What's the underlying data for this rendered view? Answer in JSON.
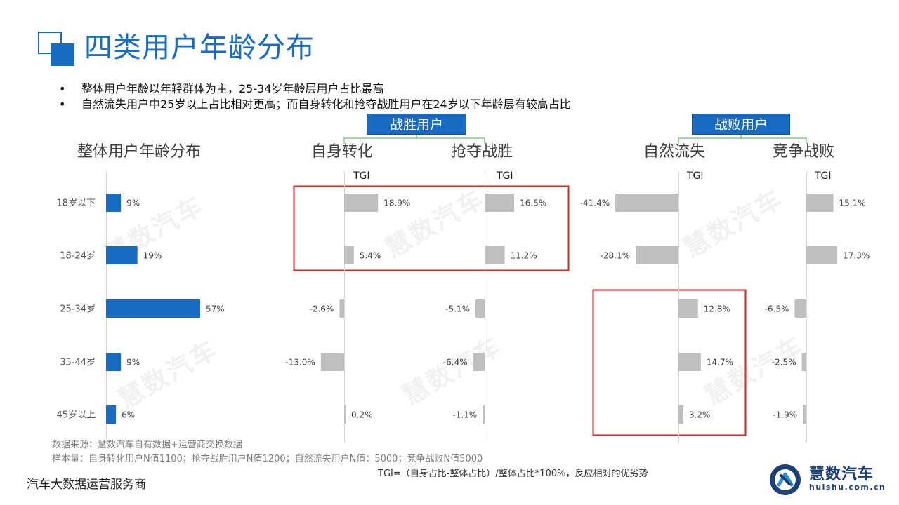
{
  "header": {
    "title": "四类用户年龄分布",
    "bullets": [
      "整体用户年龄以年轻群体为主，25-34岁年龄层用户占比最高",
      "自然流失用户中25岁以上占比相对更高；而自身转化和抢夺战胜用户在24岁以下年龄层有较高占比"
    ]
  },
  "groups": {
    "win": "战胜用户",
    "lose": "战败用户"
  },
  "chart_titles": {
    "overall": "整体用户年龄分布",
    "self": "自身转化",
    "grab": "抢夺战胜",
    "natural": "自然流失",
    "compete": "竞争战败"
  },
  "chart_data": [
    {
      "type": "bar",
      "orientation": "horizontal",
      "title": "整体用户年龄分布",
      "categories": [
        "18岁以下",
        "18-24岁",
        "25-34岁",
        "35-44岁",
        "45岁以上"
      ],
      "values": [
        9,
        19,
        57,
        9,
        6
      ],
      "labels": [
        "9%",
        "19%",
        "57%",
        "9%",
        "6%"
      ],
      "color": "#1a6bc4"
    },
    {
      "type": "bar",
      "orientation": "horizontal",
      "title": "自身转化",
      "axis_label": "TGI",
      "categories": [
        "18岁以下",
        "18-24岁",
        "25-34岁",
        "35-44岁",
        "45岁以上"
      ],
      "values": [
        18.9,
        5.4,
        -2.6,
        -13.0,
        0.2
      ],
      "labels": [
        "18.9%",
        "5.4%",
        "-2.6%",
        "-13.0%",
        "0.2%"
      ],
      "color": "#bfbfbf"
    },
    {
      "type": "bar",
      "orientation": "horizontal",
      "title": "抢夺战胜",
      "axis_label": "TGI",
      "categories": [
        "18岁以下",
        "18-24岁",
        "25-34岁",
        "35-44岁",
        "45岁以上"
      ],
      "values": [
        16.5,
        11.2,
        -5.1,
        -6.4,
        -1.1
      ],
      "labels": [
        "16.5%",
        "11.2%",
        "-5.1%",
        "-6.4%",
        "-1.1%"
      ],
      "color": "#bfbfbf"
    },
    {
      "type": "bar",
      "orientation": "horizontal",
      "title": "自然流失",
      "axis_label": "TGI",
      "categories": [
        "18岁以下",
        "18-24岁",
        "25-34岁",
        "35-44岁",
        "45岁以上"
      ],
      "values": [
        -41.4,
        -28.1,
        12.8,
        14.7,
        3.2
      ],
      "labels": [
        "-41.4%",
        "-28.1%",
        "12.8%",
        "14.7%",
        "3.2%"
      ],
      "color": "#bfbfbf"
    },
    {
      "type": "bar",
      "orientation": "horizontal",
      "title": "竞争战败",
      "axis_label": "TGI",
      "categories": [
        "18岁以下",
        "18-24岁",
        "25-34岁",
        "35-44岁",
        "45岁以上"
      ],
      "values": [
        15.1,
        17.3,
        -6.5,
        -2.5,
        -1.9
      ],
      "labels": [
        "15.1%",
        "17.3%",
        "-6.5%",
        "-2.5%",
        "-1.9%"
      ],
      "color": "#bfbfbf"
    }
  ],
  "footer": {
    "source": "数据来源：慧数汽车自有数据+运营商交换数据",
    "sample": "样本量：自身转化用户N值1100；抢夺战胜用户N值1200；自然流失用户N值：5000；竞争战败N值5000",
    "formula": "TGI=（自身占比-整体占比）/整体占比*100%，反应相对的优劣势",
    "company": "汽车大数据运营服务商"
  },
  "brand": {
    "name": "慧数汽车",
    "url": "huishu.com.cn"
  },
  "watermark_text": "慧数汽车",
  "colors": {
    "accent": "#1a6bc4",
    "bar_gray": "#bfbfbf",
    "highlight_box": "#d62728",
    "bracket": "#4caf50"
  }
}
